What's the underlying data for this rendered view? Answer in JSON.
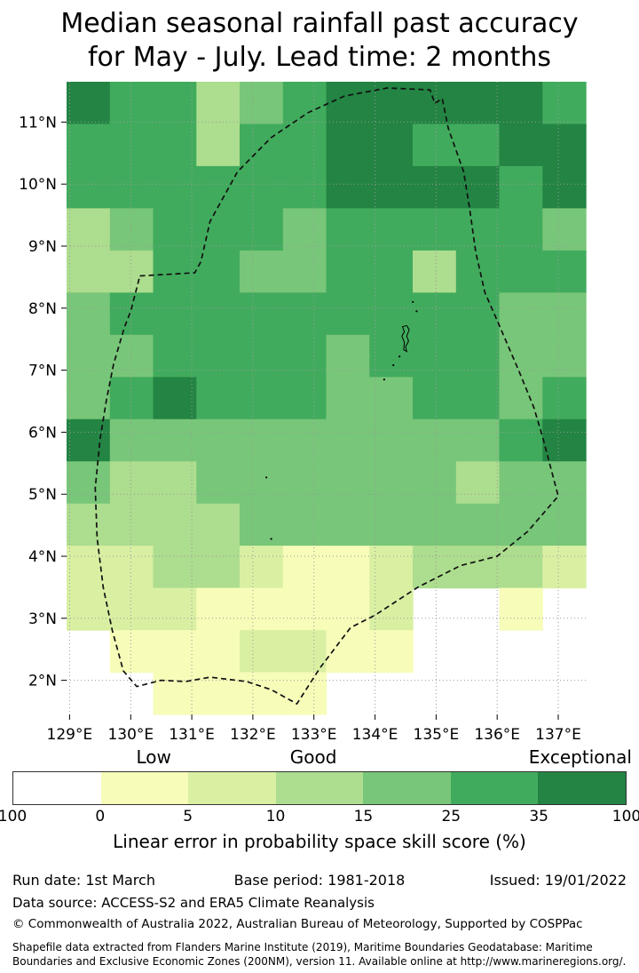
{
  "chart_data": {
    "type": "heatmap",
    "title": "Median seasonal rainfall past accuracy for May - July. Lead time: 2 months",
    "title_lines": [
      "Median seasonal rainfall past accuracy",
      "for May - July. Lead time: 2 months"
    ],
    "x_axis": {
      "ticks": [
        "129°E",
        "130°E",
        "131°E",
        "132°E",
        "133°E",
        "134°E",
        "135°E",
        "136°E",
        "137°E"
      ],
      "tick_values": [
        129,
        130,
        131,
        132,
        133,
        134,
        135,
        136,
        137
      ],
      "range": [
        128.95,
        137.45
      ]
    },
    "y_axis": {
      "ticks": [
        "2°N",
        "3°N",
        "4°N",
        "5°N",
        "6°N",
        "7°N",
        "8°N",
        "9°N",
        "10°N",
        "11°N"
      ],
      "tick_values": [
        2,
        3,
        4,
        5,
        6,
        7,
        8,
        9,
        10,
        11
      ],
      "range": [
        1.45,
        11.65
      ]
    },
    "grid_on": true,
    "palette": [
      "#ffffff",
      "#f7fcb9",
      "#d9f0a3",
      "#addd8e",
      "#78c679",
      "#41ab5d",
      "#238443"
    ],
    "cells_encoding": "each cell is an index into palette (0=white lowest skill band, 6=dark green highest band); rows top(11.65N) to bottom(1.45N), cols 128.95E to 137.45E",
    "cells": [
      [
        6,
        5,
        5,
        3,
        4,
        5,
        6,
        6,
        6,
        6,
        6,
        5
      ],
      [
        5,
        5,
        5,
        3,
        5,
        5,
        6,
        6,
        5,
        5,
        6,
        6
      ],
      [
        5,
        5,
        5,
        5,
        5,
        5,
        6,
        6,
        6,
        6,
        5,
        6
      ],
      [
        3,
        4,
        5,
        5,
        5,
        4,
        5,
        5,
        5,
        5,
        5,
        4
      ],
      [
        3,
        3,
        5,
        5,
        4,
        4,
        5,
        5,
        3,
        5,
        5,
        5
      ],
      [
        4,
        5,
        5,
        5,
        5,
        5,
        5,
        5,
        5,
        5,
        4,
        4
      ],
      [
        4,
        4,
        5,
        5,
        5,
        5,
        4,
        5,
        5,
        5,
        4,
        4
      ],
      [
        4,
        5,
        6,
        5,
        5,
        5,
        4,
        4,
        5,
        5,
        4,
        5
      ],
      [
        6,
        4,
        4,
        4,
        4,
        4,
        4,
        4,
        4,
        4,
        5,
        6
      ],
      [
        4,
        3,
        3,
        4,
        4,
        4,
        4,
        4,
        4,
        3,
        4,
        4
      ],
      [
        3,
        3,
        3,
        3,
        4,
        4,
        4,
        4,
        4,
        4,
        4,
        4
      ],
      [
        2,
        2,
        3,
        3,
        2,
        1,
        1,
        2,
        3,
        3,
        3,
        2
      ],
      [
        2,
        2,
        2,
        1,
        1,
        1,
        1,
        2,
        0,
        0,
        1,
        0
      ],
      [
        0,
        1,
        1,
        1,
        2,
        2,
        1,
        1,
        0,
        0,
        0,
        0
      ],
      [
        0,
        0,
        1,
        1,
        1,
        1,
        0,
        0,
        0,
        0,
        0,
        0
      ]
    ],
    "boundary_name": "EEZ dashed outline",
    "boundary": [
      [
        130.15,
        8.52
      ],
      [
        131.05,
        8.57
      ],
      [
        131.15,
        8.75
      ],
      [
        131.3,
        9.4
      ],
      [
        131.75,
        10.2
      ],
      [
        132.3,
        10.75
      ],
      [
        132.9,
        11.15
      ],
      [
        133.5,
        11.42
      ],
      [
        134.2,
        11.55
      ],
      [
        134.9,
        11.52
      ],
      [
        134.98,
        11.3
      ],
      [
        135.1,
        11.38
      ],
      [
        135.2,
        10.9
      ],
      [
        135.45,
        10.2
      ],
      [
        135.55,
        9.6
      ],
      [
        135.65,
        8.9
      ],
      [
        135.8,
        8.25
      ],
      [
        136.0,
        7.8
      ],
      [
        136.35,
        7.0
      ],
      [
        136.6,
        6.4
      ],
      [
        136.75,
        5.9
      ],
      [
        137.0,
        4.97
      ],
      [
        136.5,
        4.4
      ],
      [
        136.0,
        4.0
      ],
      [
        135.4,
        3.85
      ],
      [
        134.7,
        3.5
      ],
      [
        134.0,
        3.05
      ],
      [
        133.6,
        2.85
      ],
      [
        133.1,
        2.2
      ],
      [
        132.72,
        1.62
      ],
      [
        132.3,
        1.85
      ],
      [
        131.9,
        1.98
      ],
      [
        131.3,
        2.05
      ],
      [
        130.9,
        1.98
      ],
      [
        130.5,
        2.0
      ],
      [
        130.1,
        1.9
      ],
      [
        129.88,
        2.15
      ],
      [
        129.7,
        2.8
      ],
      [
        129.55,
        3.5
      ],
      [
        129.45,
        4.3
      ],
      [
        129.42,
        5.1
      ],
      [
        129.5,
        5.9
      ],
      [
        129.6,
        6.5
      ],
      [
        129.72,
        7.1
      ],
      [
        129.9,
        7.7
      ],
      [
        130.0,
        7.95
      ],
      [
        130.15,
        8.52
      ]
    ],
    "islands": {
      "outline": [
        [
          134.52,
          7.72
        ],
        [
          134.56,
          7.65
        ],
        [
          134.52,
          7.55
        ],
        [
          134.55,
          7.47
        ],
        [
          134.5,
          7.38
        ],
        [
          134.52,
          7.3
        ],
        [
          134.47,
          7.33
        ],
        [
          134.48,
          7.45
        ],
        [
          134.44,
          7.55
        ],
        [
          134.48,
          7.62
        ],
        [
          134.45,
          7.7
        ],
        [
          134.52,
          7.72
        ]
      ],
      "dots": [
        [
          134.4,
          7.22
        ],
        [
          134.3,
          7.08
        ],
        [
          134.15,
          6.85
        ],
        [
          132.22,
          5.27
        ],
        [
          132.3,
          4.28
        ],
        [
          134.68,
          7.95
        ],
        [
          134.62,
          8.1
        ]
      ]
    },
    "colorbar": {
      "labels_above": [
        "Low",
        "Good",
        "Exceptional"
      ],
      "tick_labels": [
        "100",
        "0",
        "5",
        "10",
        "15",
        "25",
        "35",
        "100"
      ],
      "colors": [
        "#ffffff",
        "#f7fcb9",
        "#d9f0a3",
        "#addd8e",
        "#78c679",
        "#41ab5d",
        "#238443"
      ],
      "caption": "Linear error in probability space skill score (%)"
    }
  },
  "footer": {
    "run_date": "Run date: 1st March",
    "base_period": "Base period: 1981-2018",
    "issued": "Issued: 19/01/2022",
    "data_source": "Data source: ACCESS-S2 and ERA5 Climate Reanalysis",
    "copyright": "© Commonwealth of Australia 2022, Australian Bureau of Meteorology, Supported by COSPPac",
    "shapefile_line1": "Shapefile data extracted from Flanders Marine Institute (2019), Maritime Boundaries Geodatabase: Maritime",
    "shapefile_line2": "Boundaries and Exclusive Economic Zones (200NM), version 11. Available online at http://www.marineregions.org/."
  }
}
